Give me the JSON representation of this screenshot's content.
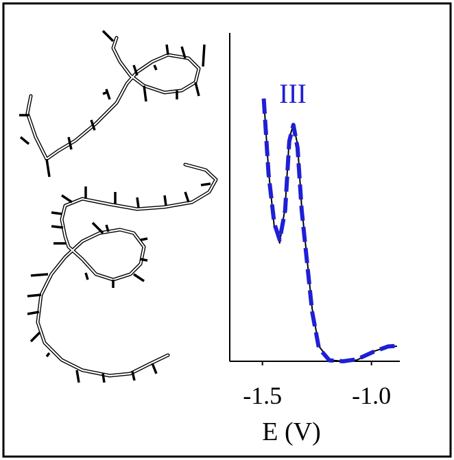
{
  "chart_data": {
    "type": "line",
    "annotation": "III",
    "x_label": "E (V)",
    "xlim": [
      -1.65,
      -0.87
    ],
    "xticks": [
      -1.5,
      {
        "value": -1.0,
        "label": "-1.0"
      }
    ],
    "ylim": [
      0,
      1
    ],
    "x": [
      -1.494,
      -1.472,
      -1.446,
      -1.421,
      -1.396,
      -1.377,
      -1.358,
      -1.339,
      -1.32,
      -1.272,
      -1.241,
      -1.193,
      -1.13,
      -1.066,
      -0.987,
      -0.924,
      -0.883
    ],
    "series": [
      {
        "color": "#000000",
        "style": "solid",
        "values": [
          0.8,
          0.58,
          0.41,
          0.36,
          0.47,
          0.68,
          0.72,
          0.66,
          0.47,
          0.16,
          0.046,
          0.004,
          0,
          0.004,
          0.031,
          0.044,
          0.046
        ]
      },
      {
        "color": "#1f1fd6",
        "style": "dashed",
        "values": [
          0.8,
          0.57,
          0.42,
          0.37,
          0.46,
          0.67,
          0.72,
          0.65,
          0.46,
          0.15,
          0.04,
          0.003,
          0,
          0.006,
          0.03,
          0.045,
          0.047
        ]
      }
    ]
  }
}
